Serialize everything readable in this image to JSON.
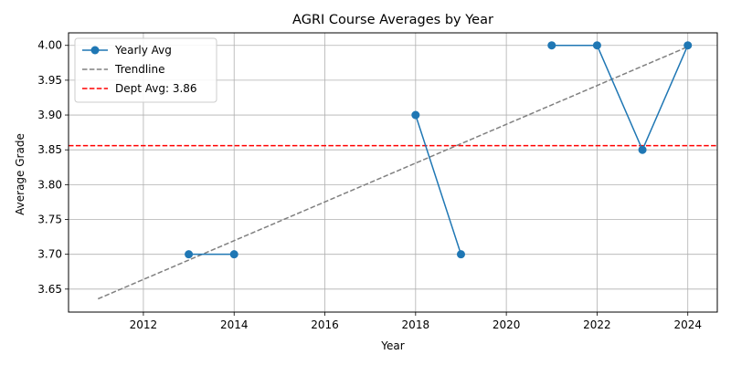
{
  "chart_data": {
    "type": "line",
    "title": "AGRI Course Averages by Year",
    "xlabel": "Year",
    "ylabel": "Average Grade",
    "xlim": [
      2010.35,
      2024.65
    ],
    "ylim": [
      3.617,
      4.018
    ],
    "xticks": [
      2012,
      2014,
      2016,
      2018,
      2020,
      2022,
      2024
    ],
    "yticks": [
      3.65,
      3.7,
      3.75,
      3.8,
      3.85,
      3.9,
      3.95,
      4.0
    ],
    "xtick_labels": [
      "2012",
      "2014",
      "2016",
      "2018",
      "2020",
      "2022",
      "2024"
    ],
    "ytick_labels": [
      "3.65",
      "3.70",
      "3.75",
      "3.80",
      "3.85",
      "3.90",
      "3.95",
      "4.00"
    ],
    "grid": true,
    "legend_position": "upper-left",
    "series": [
      {
        "name": "Yearly Avg",
        "style": "solid-with-markers",
        "color": "#1f77b4",
        "segments": [
          {
            "x": [
              2013,
              2014
            ],
            "y": [
              3.7,
              3.7
            ]
          },
          {
            "x": [
              2018,
              2019
            ],
            "y": [
              3.9,
              3.7
            ]
          },
          {
            "x": [
              2021,
              2022,
              2023,
              2024
            ],
            "y": [
              4.0,
              4.0,
              3.85,
              4.0
            ]
          }
        ]
      },
      {
        "name": "Trendline",
        "style": "dashed",
        "color": "#808080",
        "x": [
          2011,
          2024
        ],
        "y": [
          3.636,
          3.998
        ]
      }
    ],
    "reference_lines": [
      {
        "name": "Dept Avg: 3.86",
        "orientation": "horizontal",
        "value": 3.856,
        "style": "dashed",
        "color": "#ff0000"
      }
    ]
  }
}
